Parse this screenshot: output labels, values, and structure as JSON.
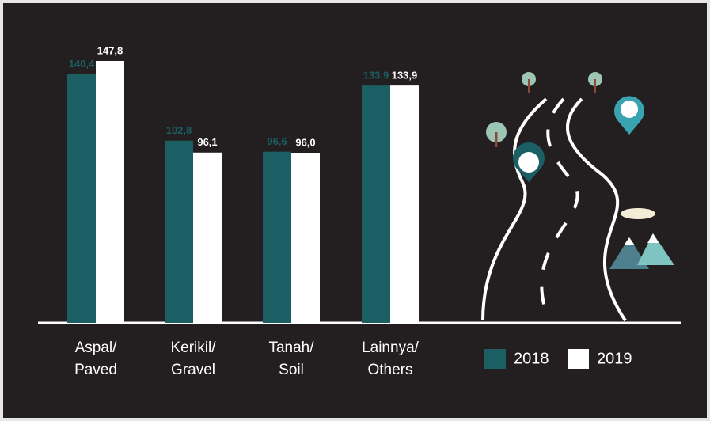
{
  "chart_data": {
    "type": "bar",
    "categories": [
      [
        "Aspal/",
        "Paved"
      ],
      [
        "Kerikil/",
        "Gravel"
      ],
      [
        "Tanah/",
        "Soil"
      ],
      [
        "Lainnya/",
        "Others"
      ]
    ],
    "series": [
      {
        "name": "2018",
        "color": "#1b5f64",
        "values": [
          140.4,
          102.8,
          96.6,
          133.9
        ],
        "value_labels": [
          "140,4",
          "102,8",
          "96,6",
          "133,9"
        ]
      },
      {
        "name": "2019",
        "color": "#ffffff",
        "values": [
          147.8,
          96.1,
          96.0,
          133.9
        ],
        "value_labels": [
          "147,8",
          "96,1",
          "96,0",
          "133,9"
        ]
      }
    ],
    "legend": "bottom-right"
  }
}
